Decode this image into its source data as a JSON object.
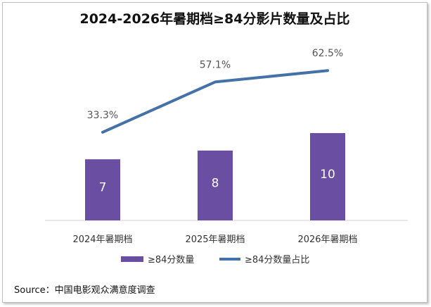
{
  "title": "2024-2026年暑期档≥84分影片数量及占比",
  "source": "Source：中国电影观众满意度调查",
  "chart_data": {
    "type": "bar+line",
    "title": "2024-2026年暑期档≥84分影片数量及占比",
    "categories": [
      "2024年暑期档",
      "2025年暑期档",
      "2026年暑期档"
    ],
    "series": [
      {
        "name": "≥84分数量",
        "type": "bar",
        "color": "#6a4ea1",
        "values": [
          7,
          8,
          10
        ],
        "labels": [
          "7",
          "8",
          "10"
        ]
      },
      {
        "name": "≥84分数量占比",
        "type": "line",
        "color": "#4472a8",
        "values": [
          33.3,
          57.1,
          62.5
        ],
        "labels": [
          "33.3%",
          "57.1%",
          "62.5%"
        ]
      }
    ],
    "legend_position": "bottom",
    "grid": false
  }
}
